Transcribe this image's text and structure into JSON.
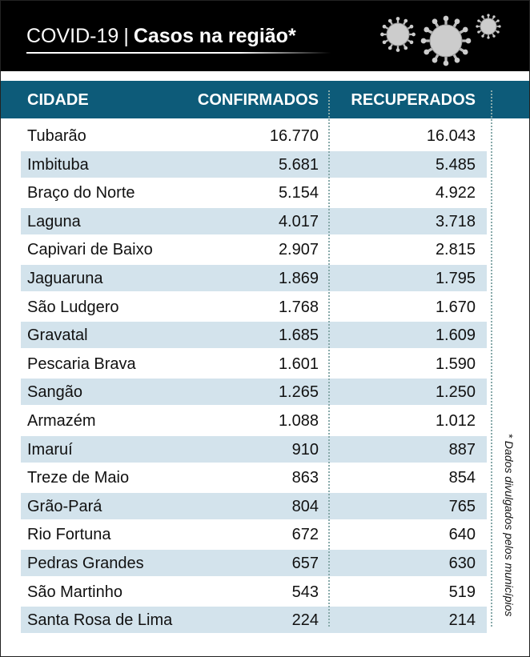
{
  "header": {
    "prefix": "COVID-19",
    "separator": "|",
    "title": "Casos na região*"
  },
  "table": {
    "columns": [
      "CIDADE",
      "CONFIRMADOS",
      "RECUPERADOS"
    ],
    "rows": [
      [
        "Tubarão",
        "16.770",
        "16.043"
      ],
      [
        "Imbituba",
        "5.681",
        "5.485"
      ],
      [
        "Braço do Norte",
        "5.154",
        "4.922"
      ],
      [
        "Laguna",
        "4.017",
        "3.718"
      ],
      [
        "Capivari de Baixo",
        "2.907",
        "2.815"
      ],
      [
        "Jaguaruna",
        "1.869",
        "1.795"
      ],
      [
        "São Ludgero",
        "1.768",
        "1.670"
      ],
      [
        "Gravatal",
        "1.685",
        "1.609"
      ],
      [
        "Pescaria Brava",
        "1.601",
        "1.590"
      ],
      [
        "Sangão",
        "1.265",
        "1.250"
      ],
      [
        "Armazém",
        "1.088",
        "1.012"
      ],
      [
        "Imaruí",
        "910",
        "887"
      ],
      [
        "Treze de Maio",
        "863",
        "854"
      ],
      [
        "Grão-Pará",
        "804",
        "765"
      ],
      [
        "Rio Fortuna",
        "672",
        "640"
      ],
      [
        "Pedras Grandes",
        "657",
        "630"
      ],
      [
        "São Martinho",
        "543",
        "519"
      ],
      [
        "Santa Rosa de Lima",
        "224",
        "214"
      ]
    ]
  },
  "footnote": "* Dados divulgados pelos municípios"
}
